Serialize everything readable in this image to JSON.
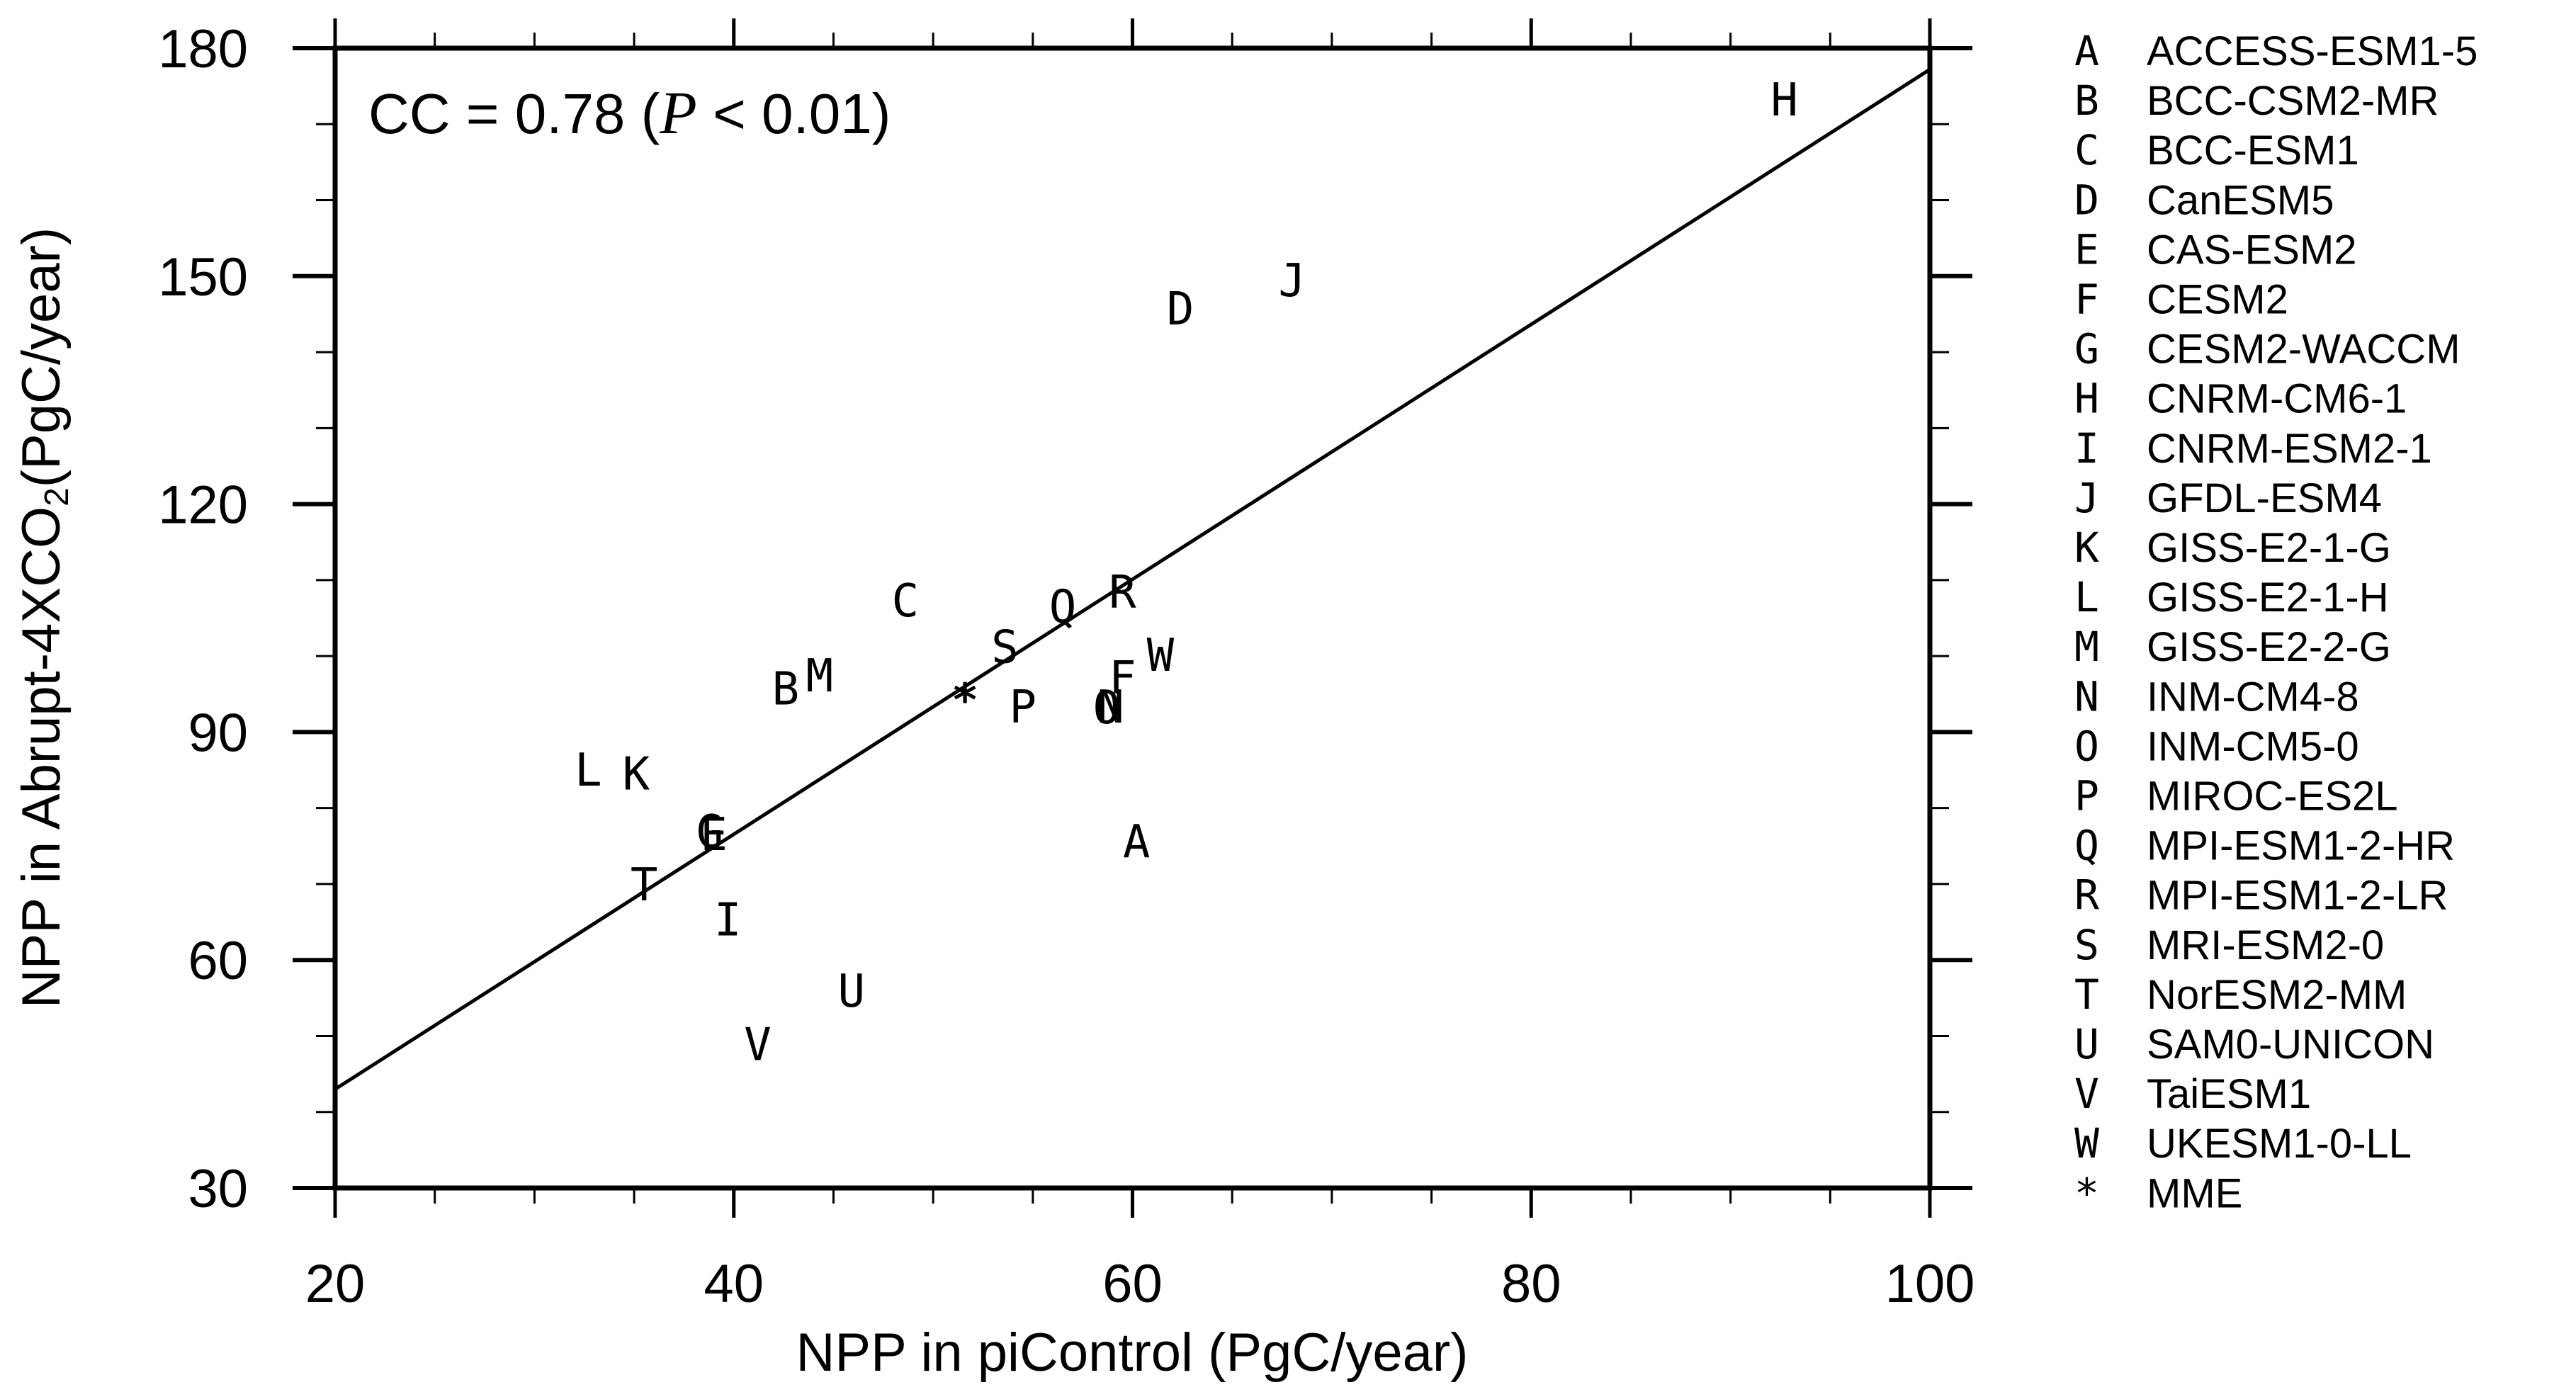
{
  "chart_data": {
    "type": "scatter",
    "title": "",
    "xlabel": "NPP in piControl (PgC/year)",
    "ylabel_main": "NPP in Abrupt-4XCO",
    "ylabel_sub": "2",
    "ylabel_tail": "(PgC/year)",
    "xlim": [
      20,
      100
    ],
    "ylim": [
      30,
      180
    ],
    "x_ticks": [
      20,
      40,
      60,
      80,
      100
    ],
    "x_tick_labels": [
      "20",
      "40",
      "60",
      "80",
      "100"
    ],
    "x_minor_step": 5,
    "y_ticks": [
      30,
      60,
      90,
      120,
      150,
      180
    ],
    "y_tick_labels": [
      "30",
      "60",
      "90",
      "120",
      "150",
      "180"
    ],
    "y_minor_step": 10,
    "grid": false,
    "annotation": {
      "prefix": "CC = 0.78 (",
      "p_symbol": "P",
      "suffix": " < 0.01)"
    },
    "correlation": 0.78,
    "p_value_text": "< 0.01",
    "regression_line": {
      "x": [
        20,
        100
      ],
      "y": [
        43.0,
        177.2
      ]
    },
    "legend_position": "right",
    "points": [
      {
        "marker": "A",
        "model": "ACCESS-ESM1-5",
        "x": 60.2,
        "y": 75.6
      },
      {
        "marker": "B",
        "model": "BCC-CSM2-MR",
        "x": 42.6,
        "y": 95.7
      },
      {
        "marker": "C",
        "model": "BCC-ESM1",
        "x": 48.6,
        "y": 107.3
      },
      {
        "marker": "D",
        "model": "CanESM5",
        "x": 62.4,
        "y": 145.7
      },
      {
        "marker": "E",
        "model": "CAS-ESM2",
        "x": 39.0,
        "y": 76.5
      },
      {
        "marker": "F",
        "model": "CESM2",
        "x": 59.5,
        "y": 97.1
      },
      {
        "marker": "G",
        "model": "CESM2-WACCM",
        "x": 38.8,
        "y": 76.9
      },
      {
        "marker": "H",
        "model": "CNRM-CM6-1",
        "x": 92.7,
        "y": 173.2
      },
      {
        "marker": "I",
        "model": "CNRM-ESM2-1",
        "x": 39.7,
        "y": 65.3
      },
      {
        "marker": "J",
        "model": "GFDL-ESM4",
        "x": 68.0,
        "y": 149.4
      },
      {
        "marker": "K",
        "model": "GISS-E2-1-G",
        "x": 35.1,
        "y": 84.5
      },
      {
        "marker": "L",
        "model": "GISS-E2-1-H",
        "x": 32.7,
        "y": 85.0
      },
      {
        "marker": "M",
        "model": "GISS-E2-2-G",
        "x": 44.3,
        "y": 97.4
      },
      {
        "marker": "N",
        "model": "INM-CM4-8",
        "x": 58.9,
        "y": 93.3
      },
      {
        "marker": "O",
        "model": "INM-CM5-0",
        "x": 58.7,
        "y": 93.2
      },
      {
        "marker": "P",
        "model": "MIROC-ES2L",
        "x": 54.5,
        "y": 93.3
      },
      {
        "marker": "Q",
        "model": "MPI-ESM1-2-HR",
        "x": 56.5,
        "y": 106.5
      },
      {
        "marker": "R",
        "model": "MPI-ESM1-2-LR",
        "x": 59.5,
        "y": 108.4
      },
      {
        "marker": "S",
        "model": "MRI-ESM2-0",
        "x": 53.6,
        "y": 101.2
      },
      {
        "marker": "T",
        "model": "NorESM2-MM",
        "x": 35.5,
        "y": 69.9
      },
      {
        "marker": "U",
        "model": "SAM0-UNICON",
        "x": 45.9,
        "y": 55.9
      },
      {
        "marker": "V",
        "model": "TaiESM1",
        "x": 41.2,
        "y": 48.9
      },
      {
        "marker": "W",
        "model": "UKESM1-0-LL",
        "x": 61.4,
        "y": 100.1
      },
      {
        "marker": "*",
        "model": "MME",
        "x": 51.6,
        "y": 95.3
      }
    ],
    "legend": [
      {
        "symbol": "A",
        "label": "ACCESS-ESM1-5"
      },
      {
        "symbol": "B",
        "label": "BCC-CSM2-MR"
      },
      {
        "symbol": "C",
        "label": "BCC-ESM1"
      },
      {
        "symbol": "D",
        "label": "CanESM5"
      },
      {
        "symbol": "E",
        "label": "CAS-ESM2"
      },
      {
        "symbol": "F",
        "label": "CESM2"
      },
      {
        "symbol": "G",
        "label": "CESM2-WACCM"
      },
      {
        "symbol": "H",
        "label": "CNRM-CM6-1"
      },
      {
        "symbol": "I",
        "label": "CNRM-ESM2-1"
      },
      {
        "symbol": "J",
        "label": "GFDL-ESM4"
      },
      {
        "symbol": "K",
        "label": "GISS-E2-1-G"
      },
      {
        "symbol": "L",
        "label": "GISS-E2-1-H"
      },
      {
        "symbol": "M",
        "label": "GISS-E2-2-G"
      },
      {
        "symbol": "N",
        "label": "INM-CM4-8"
      },
      {
        "symbol": "O",
        "label": "INM-CM5-0"
      },
      {
        "symbol": "P",
        "label": "MIROC-ES2L"
      },
      {
        "symbol": "Q",
        "label": "MPI-ESM1-2-HR"
      },
      {
        "symbol": "R",
        "label": "MPI-ESM1-2-LR"
      },
      {
        "symbol": "S",
        "label": "MRI-ESM2-0"
      },
      {
        "symbol": "T",
        "label": "NorESM2-MM"
      },
      {
        "symbol": "U",
        "label": "SAM0-UNICON"
      },
      {
        "symbol": "V",
        "label": "TaiESM1"
      },
      {
        "symbol": "W",
        "label": "UKESM1-0-LL"
      },
      {
        "symbol": "*",
        "label": "MME"
      }
    ]
  },
  "colors": {
    "background": "#ffffff",
    "ink": "#000000"
  }
}
